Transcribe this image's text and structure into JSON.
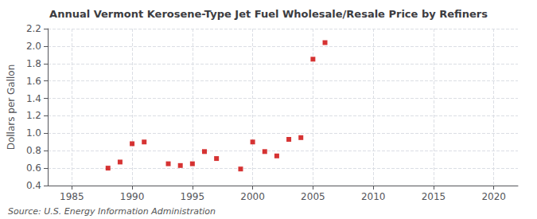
{
  "chart_data": {
    "type": "scatter",
    "title": "Annual Vermont Kerosene-Type Jet Fuel Wholesale/Resale Price by Refiners",
    "ylabel": "Dollars per Gallon",
    "annotations": [
      "Source: U.S. Energy Information Administration"
    ],
    "x": [
      1988,
      1989,
      1990,
      1991,
      1993,
      1994,
      1995,
      1996,
      1997,
      1999,
      2000,
      2001,
      2002,
      2003,
      2004,
      2005,
      2006
    ],
    "values": [
      0.6,
      0.67,
      0.88,
      0.9,
      0.65,
      0.63,
      0.65,
      0.79,
      0.71,
      0.59,
      0.9,
      0.79,
      0.74,
      0.93,
      0.95,
      1.85,
      2.04
    ],
    "color": "#cc0000",
    "marker": "square",
    "xlim": [
      1983,
      2022
    ],
    "xticks": [
      1985,
      1990,
      1995,
      2000,
      2005,
      2010,
      2015,
      2020
    ],
    "ylim": [
      0.4,
      2.2
    ],
    "yticks": [
      0.4,
      0.6,
      0.8,
      {
        "value": 1.0,
        "label": "1.0"
      },
      1.2,
      1.4,
      1.6,
      1.8,
      {
        "value": 2.0,
        "label": "2.0"
      },
      2.2
    ],
    "grid": true
  }
}
